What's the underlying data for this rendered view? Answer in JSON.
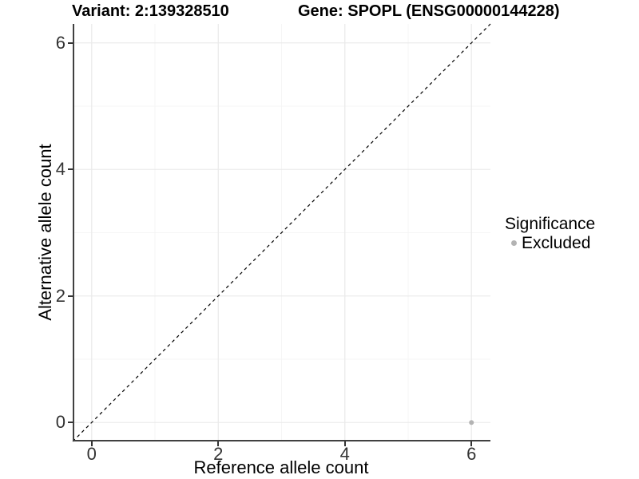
{
  "titles": {
    "variant": "Variant: 2:139328510",
    "gene": "Gene: SPOPL (ENSG00000144228)"
  },
  "legend": {
    "title": "Significance",
    "items": [
      {
        "label": "Excluded",
        "color": "#b3b3b3"
      }
    ]
  },
  "chart_data": {
    "type": "scatter",
    "title": "Variant: 2:139328510  Gene: SPOPL (ENSG00000144228)",
    "xlabel": "Reference allele count",
    "ylabel": "Alternative allele count",
    "xlim": [
      -0.3,
      6.3
    ],
    "ylim": [
      -0.3,
      6.3
    ],
    "x_ticks": [
      0,
      2,
      4,
      6
    ],
    "y_ticks": [
      0,
      2,
      4,
      6
    ],
    "x_minor_ticks": [
      1,
      3,
      5
    ],
    "y_minor_ticks": [
      1,
      3,
      5
    ],
    "grid": {
      "major_color": "#ebebeb",
      "minor_color": "#f5f5f5"
    },
    "axis_line_color": "#404040",
    "reference_line": {
      "type": "identity",
      "from": [
        -0.3,
        -0.3
      ],
      "to": [
        6.3,
        6.3
      ],
      "style": "dashed",
      "color": "#000000"
    },
    "series": [
      {
        "name": "Excluded",
        "color": "#b3b3b3",
        "points": [
          {
            "x": 6,
            "y": 0
          }
        ]
      }
    ],
    "legend_position": "right",
    "legend_title": "Significance"
  }
}
